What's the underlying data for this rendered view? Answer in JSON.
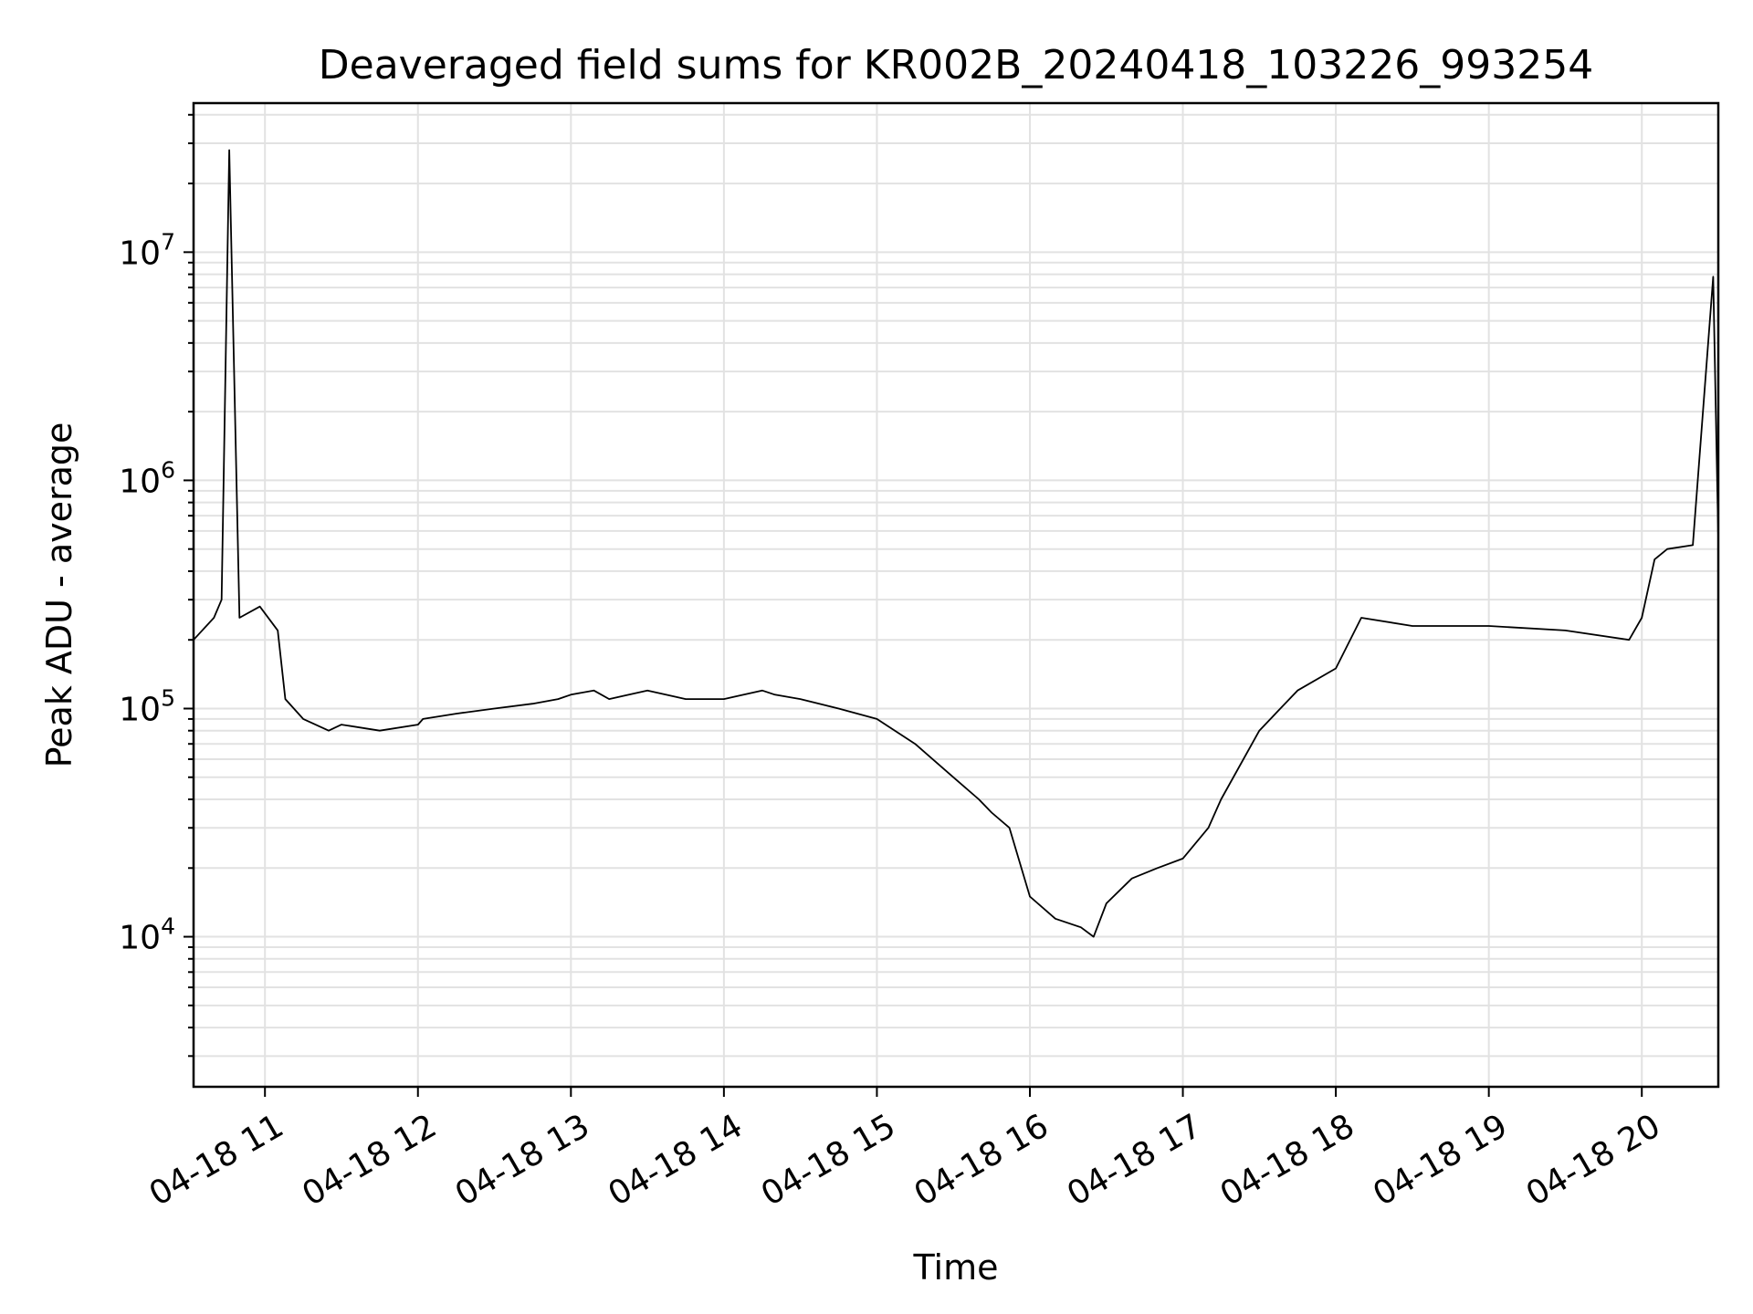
{
  "chart_data": {
    "type": "line",
    "title": "Deaveraged field sums for KR002B_20240418_103226_993254",
    "xlabel": "Time",
    "ylabel": "Peak ADU - average",
    "y_scale": "log",
    "ylim": [
      2200,
      45000000
    ],
    "xlim": [
      "2024-04-18 10:32",
      "2024-04-18 20:30"
    ],
    "x_ticks": [
      {
        "value": "2024-04-18 11:00",
        "label": "04-18 11"
      },
      {
        "value": "2024-04-18 12:00",
        "label": "04-18 12"
      },
      {
        "value": "2024-04-18 13:00",
        "label": "04-18 13"
      },
      {
        "value": "2024-04-18 14:00",
        "label": "04-18 14"
      },
      {
        "value": "2024-04-18 15:00",
        "label": "04-18 15"
      },
      {
        "value": "2024-04-18 16:00",
        "label": "04-18 16"
      },
      {
        "value": "2024-04-18 17:00",
        "label": "04-18 17"
      },
      {
        "value": "2024-04-18 18:00",
        "label": "04-18 18"
      },
      {
        "value": "2024-04-18 19:00",
        "label": "04-18 19"
      },
      {
        "value": "2024-04-18 20:00",
        "label": "04-18 20"
      }
    ],
    "y_ticks": [
      {
        "value": 10000,
        "base": "10",
        "exp": "4"
      },
      {
        "value": 100000,
        "base": "10",
        "exp": "5"
      },
      {
        "value": 1000000,
        "base": "10",
        "exp": "6"
      },
      {
        "value": 10000000,
        "base": "10",
        "exp": "7"
      }
    ],
    "grid": true,
    "legend": "none",
    "line_color": "#000000",
    "series": [
      {
        "x": [
          "2024-04-18 10:32",
          "2024-04-18 10:40",
          "2024-04-18 10:43",
          "2024-04-18 10:46",
          "2024-04-18 10:50",
          "2024-04-18 10:58",
          "2024-04-18 11:05",
          "2024-04-18 11:08",
          "2024-04-18 11:15",
          "2024-04-18 11:25",
          "2024-04-18 11:30",
          "2024-04-18 11:45",
          "2024-04-18 12:00",
          "2024-04-18 12:02",
          "2024-04-18 12:15",
          "2024-04-18 12:30",
          "2024-04-18 12:45",
          "2024-04-18 12:55",
          "2024-04-18 13:00",
          "2024-04-18 13:09",
          "2024-04-18 13:15",
          "2024-04-18 13:30",
          "2024-04-18 13:45",
          "2024-04-18 14:00",
          "2024-04-18 14:15",
          "2024-04-18 14:20",
          "2024-04-18 14:30",
          "2024-04-18 14:45",
          "2024-04-18 15:00",
          "2024-04-18 15:15",
          "2024-04-18 15:30",
          "2024-04-18 15:40",
          "2024-04-18 15:45",
          "2024-04-18 15:52",
          "2024-04-18 16:00",
          "2024-04-18 16:10",
          "2024-04-18 16:20",
          "2024-04-18 16:25",
          "2024-04-18 16:30",
          "2024-04-18 16:40",
          "2024-04-18 16:50",
          "2024-04-18 17:00",
          "2024-04-18 17:10",
          "2024-04-18 17:15",
          "2024-04-18 17:30",
          "2024-04-18 17:45",
          "2024-04-18 18:00",
          "2024-04-18 18:10",
          "2024-04-18 18:30",
          "2024-04-18 19:00",
          "2024-04-18 19:30",
          "2024-04-18 19:55",
          "2024-04-18 20:00",
          "2024-04-18 20:05",
          "2024-04-18 20:10",
          "2024-04-18 20:20",
          "2024-04-18 20:28",
          "2024-04-18 20:30"
        ],
        "y": [
          200000,
          250000,
          300000,
          28000000,
          250000,
          280000,
          220000,
          110000,
          90000,
          80000,
          85000,
          80000,
          85000,
          90000,
          95000,
          100000,
          105000,
          110000,
          115000,
          120000,
          110000,
          120000,
          110000,
          110000,
          120000,
          115000,
          110000,
          100000,
          90000,
          70000,
          50000,
          40000,
          35000,
          30000,
          15000,
          12000,
          11000,
          10000,
          14000,
          18000,
          20000,
          22000,
          30000,
          40000,
          80000,
          120000,
          150000,
          250000,
          230000,
          230000,
          220000,
          200000,
          250000,
          450000,
          500000,
          520000,
          7800000,
          550000
        ]
      }
    ]
  }
}
